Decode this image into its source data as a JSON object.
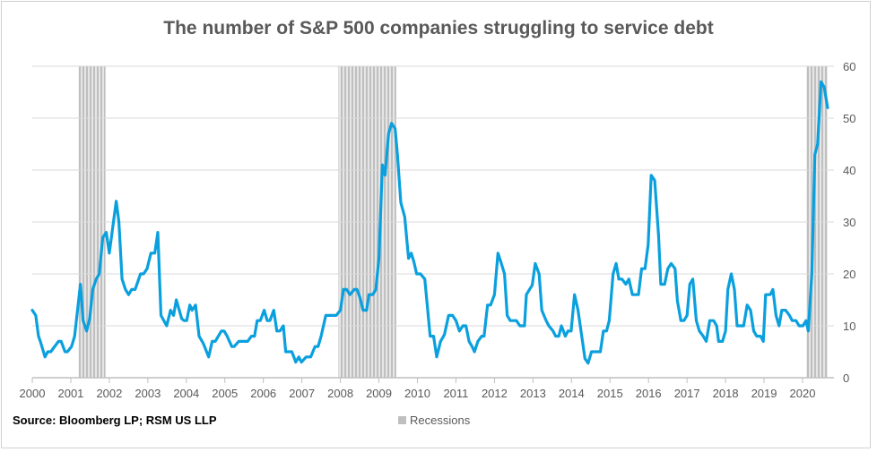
{
  "chart_data": {
    "type": "line",
    "title": "The number of S&P 500 companies struggling to service debt",
    "source": "Source:  Bloomberg LP; RSM US LLP",
    "legend": {
      "label": "Recessions",
      "placement": "bottom"
    },
    "xlabel": "",
    "ylabel": "",
    "x_ticks": [
      "2000",
      "2001",
      "2002",
      "2003",
      "2004",
      "2005",
      "2006",
      "2007",
      "2008",
      "2009",
      "2010",
      "2011",
      "2012",
      "2013",
      "2014",
      "2015",
      "2016",
      "2017",
      "2018",
      "2019",
      "2020"
    ],
    "y_ticks": [
      "0",
      "10",
      "20",
      "30",
      "40",
      "50",
      "60"
    ],
    "ylim": [
      0,
      60
    ],
    "xlim": [
      2000,
      2020.7
    ],
    "y_axis_side": "right",
    "grid": "horizontal",
    "colors": {
      "line": "#0aa0de",
      "recession": "#bfbfbf",
      "grid": "#d9d9d9",
      "text": "#595959"
    },
    "recessions": [
      [
        2001.2,
        2001.9
      ],
      [
        2007.95,
        2009.45
      ],
      [
        2020.1,
        2020.65
      ]
    ],
    "series": [
      {
        "x": [
          2000.0,
          2000.09,
          2000.16,
          2000.21,
          2000.33,
          2000.4,
          2000.48,
          2000.68,
          2000.75,
          2000.85,
          2000.91,
          2001.02,
          2001.1,
          2001.25,
          2001.32,
          2001.41,
          2001.49,
          2001.57,
          2001.66,
          2001.74,
          2001.83,
          2001.92,
          2002.0,
          2002.18,
          2002.25,
          2002.33,
          2002.42,
          2002.5,
          2002.58,
          2002.67,
          2002.81,
          2002.89,
          2002.98,
          2003.08,
          2003.18,
          2003.26,
          2003.34,
          2003.49,
          2003.59,
          2003.67,
          2003.74,
          2003.88,
          2003.94,
          2004.01,
          2004.09,
          2004.15,
          2004.24,
          2004.33,
          2004.44,
          2004.58,
          2004.67,
          2004.75,
          2004.91,
          2004.98,
          2005.06,
          2005.18,
          2005.24,
          2005.36,
          2005.59,
          2005.69,
          2005.77,
          2005.84,
          2005.92,
          2006.02,
          2006.1,
          2006.17,
          2006.27,
          2006.35,
          2006.43,
          2006.52,
          2006.58,
          2006.74,
          2006.84,
          2006.92,
          2006.99,
          2007.11,
          2007.23,
          2007.34,
          2007.42,
          2007.5,
          2007.62,
          2007.89,
          2008.0,
          2008.08,
          2008.16,
          2008.25,
          2008.36,
          2008.43,
          2008.51,
          2008.59,
          2008.68,
          2008.74,
          2008.84,
          2008.92,
          2009.0,
          2009.09,
          2009.16,
          2009.25,
          2009.33,
          2009.42,
          2009.48,
          2009.57,
          2009.67,
          2009.77,
          2009.84,
          2009.91,
          2009.98,
          2010.08,
          2010.19,
          2010.33,
          2010.42,
          2010.5,
          2010.6,
          2010.7,
          2010.81,
          2010.91,
          2011.0,
          2011.09,
          2011.18,
          2011.26,
          2011.34,
          2011.42,
          2011.48,
          2011.57,
          2011.67,
          2011.73,
          2011.82,
          2011.9,
          2012.0,
          2012.09,
          2012.18,
          2012.26,
          2012.33,
          2012.41,
          2012.57,
          2012.66,
          2012.78,
          2012.83,
          2012.91,
          2012.98,
          2013.06,
          2013.16,
          2013.23,
          2013.34,
          2013.41,
          2013.52,
          2013.59,
          2013.67,
          2013.74,
          2013.84,
          2013.91,
          2013.99,
          2014.08,
          2014.17,
          2014.35,
          2014.43,
          2014.52,
          2014.75,
          2014.83,
          2014.91,
          2014.98,
          2015.08,
          2015.16,
          2015.23,
          2015.31,
          2015.41,
          2015.49,
          2015.58,
          2015.74,
          2015.82,
          2015.91,
          2015.99,
          2016.07,
          2016.16,
          2016.26,
          2016.32,
          2016.42,
          2016.5,
          2016.59,
          2016.69,
          2016.75,
          2016.84,
          2016.92,
          2017.0,
          2017.07,
          2017.15,
          2017.24,
          2017.32,
          2017.42,
          2017.5,
          2017.59,
          2017.69,
          2017.77,
          2017.82,
          2017.92,
          2018.0,
          2018.06,
          2018.15,
          2018.23,
          2018.3,
          2018.47,
          2018.56,
          2018.65,
          2018.73,
          2018.81,
          2018.91,
          2018.98,
          2019.04,
          2019.16,
          2019.23,
          2019.31,
          2019.39,
          2019.46,
          2019.56,
          2019.66,
          2019.73,
          2019.83,
          2019.91,
          2020.01,
          2020.09,
          2020.15,
          2020.24,
          2020.32,
          2020.39,
          2020.48,
          2020.56,
          2020.65
        ],
        "values": [
          13,
          12,
          8,
          7,
          4,
          5,
          5,
          7,
          7,
          5,
          5,
          6,
          8,
          18,
          11,
          9,
          11.4,
          17,
          19,
          20,
          27,
          28,
          24,
          34,
          30,
          19,
          17,
          16,
          17,
          17,
          20,
          20,
          21,
          24,
          24,
          28,
          12,
          10,
          13,
          12,
          15,
          11.4,
          11,
          11,
          14,
          13,
          14,
          8,
          6.6,
          4,
          7,
          7,
          9,
          9,
          8,
          6,
          6,
          7,
          7,
          8,
          8,
          11,
          11,
          13,
          11,
          11,
          13,
          9,
          9,
          10,
          5,
          5,
          3,
          4,
          3,
          4,
          4,
          6,
          6,
          8,
          12,
          12,
          13,
          17,
          17,
          16,
          17,
          17,
          15.4,
          13,
          13,
          16,
          16,
          17,
          23,
          41,
          39,
          47,
          49,
          48,
          43,
          33.7,
          31,
          23,
          24,
          22.3,
          20,
          20,
          19,
          8,
          8,
          4,
          7,
          8.3,
          12,
          12,
          11,
          9,
          10,
          10,
          7,
          6,
          5,
          7,
          8,
          8,
          14,
          14,
          16,
          24,
          22,
          20,
          12,
          11,
          11,
          10,
          10,
          16,
          17,
          17.8,
          22,
          20,
          13,
          11,
          10,
          9,
          8,
          8,
          10,
          8,
          9,
          9,
          16,
          13,
          3.7,
          2.8,
          5,
          5,
          9,
          9,
          11,
          20,
          22,
          19,
          19,
          18,
          19,
          16,
          16,
          21,
          21,
          25.6,
          39,
          38,
          27.4,
          18,
          18,
          21,
          22,
          21,
          14.8,
          11,
          11,
          12,
          18,
          19,
          11,
          9,
          8,
          7,
          11,
          11,
          10,
          7,
          7,
          9,
          17,
          20,
          17,
          10,
          10,
          14,
          13,
          9,
          8,
          8,
          7,
          16,
          16,
          17,
          12,
          10,
          13,
          13,
          12,
          11,
          11,
          10,
          10,
          11,
          9,
          20,
          43,
          45,
          57,
          56,
          52
        ]
      }
    ]
  }
}
